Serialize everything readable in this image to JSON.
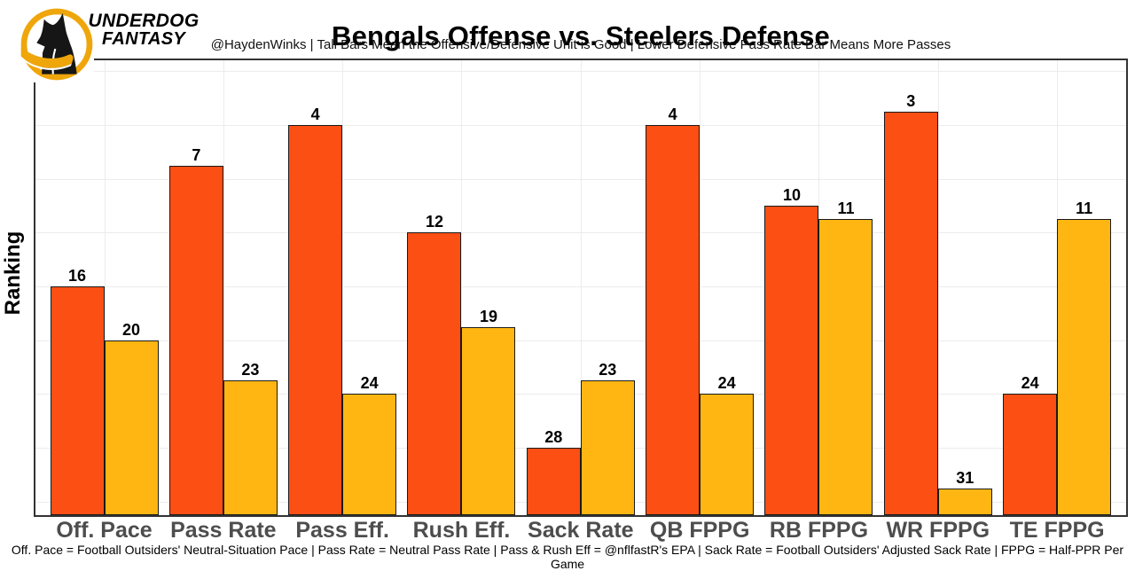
{
  "brand": {
    "line1": "UNDERDOG",
    "line2": "FANTASY",
    "logo_icon": "underdog-dog-logo",
    "logo_gold": "#EFA60B",
    "logo_black": "#161616"
  },
  "header": {
    "title": "Bengals Offense vs. Steelers Defense",
    "subtitle": "@HaydenWinks | Tall Bars Mean the Offensive/Defensive Unit is Good | Lower Defensive Pass Rate Bar Means More Passes"
  },
  "chart_data": {
    "type": "bar",
    "title": "Bengals Offense vs. Steelers Defense",
    "xlabel": "",
    "ylabel": "Ranking",
    "categories": [
      "Off. Pace",
      "Pass Rate",
      "Pass Eff.",
      "Rush Eff.",
      "Sack Rate",
      "QB FPPG",
      "RB FPPG",
      "WR FPPG",
      "TE FPPG"
    ],
    "series": [
      {
        "name": "Bengals Offense",
        "color": "#FB4F14",
        "values": [
          16,
          7,
          4,
          12,
          28,
          4,
          10,
          3,
          24
        ]
      },
      {
        "name": "Steelers Defense",
        "color": "#FFB612",
        "values": [
          20,
          23,
          24,
          19,
          23,
          24,
          11,
          31,
          11
        ]
      }
    ],
    "bar_value_labels": true,
    "value_encoding": "bar height = 33 - rank (lower rank number = taller bar)",
    "ylim": [
      0,
      33.8
    ],
    "y_tick_labels": "none",
    "grid": true,
    "legend": "none"
  },
  "footer": {
    "note": "Off. Pace = Football Outsiders' Neutral-Situation Pace | Pass Rate = Neutral Pass Rate | Pass & Rush Eff = @nflfastR's EPA | Sack Rate = Football Outsiders' Adjusted Sack Rate | FPPG = Half-PPR Per Game"
  }
}
